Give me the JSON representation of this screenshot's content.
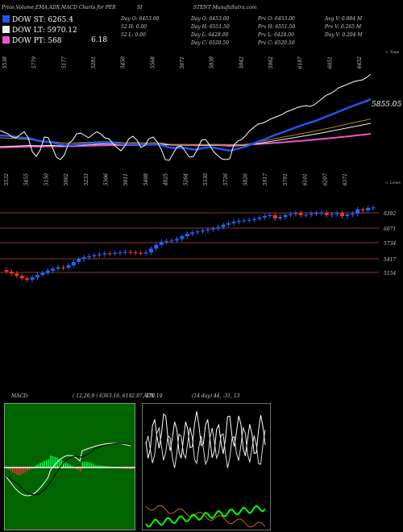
{
  "header": {
    "title_left": "Price,Volume,EMA,ADX,MACD Charts for PER",
    "title_mid": "SI",
    "title_right": "STENT MunafaSutra.com"
  },
  "legend": [
    {
      "label": "DOW ST: 6265.4",
      "color": "#2255ee",
      "extra": ""
    },
    {
      "label": "DOW LT: 5970.12",
      "color": "#f0f0f0",
      "extra": ""
    },
    {
      "label": "DOW PT: 568",
      "color": "#ee55cc",
      "extra": "6.18"
    }
  ],
  "stats": {
    "col1": [
      "Day O: 6453.00",
      "52 H: 0.00",
      "52 L: 0.00"
    ],
    "col2": [
      "Day O: 6453.00",
      "Day H: 6551.50",
      "Day L: 6428.00",
      "Day C: 6520.50"
    ],
    "col3": [
      "Prv O: 6453.00",
      "Prv H: 6551.50",
      "Prv L: 6428.00",
      "Prv C: 6520.50"
    ],
    "col4": [
      "Avg V: 0.084 M",
      "Prv V: 0.265 M",
      "Day V: 0.204 M"
    ]
  },
  "price_panel": {
    "top_label": "< Tops",
    "bottom_label": "< Lows",
    "current_label": "5855.05",
    "tops": [
      "5538",
      "5779",
      "5177",
      "5281",
      "5450",
      "5568",
      "5671",
      "5838",
      "5842",
      "5962",
      "6187",
      "6051",
      "6452"
    ],
    "lows": [
      "5532",
      "5455",
      "5150",
      "5062",
      "5233",
      "5306",
      "5011",
      "5408",
      "4825",
      "5264",
      "5330",
      "5726",
      "5826",
      "5917",
      "5791",
      "6101",
      "6207",
      "6371"
    ],
    "price_series": [
      5560,
      5540,
      5520,
      5480,
      5470,
      5510,
      5545,
      5470,
      5300,
      5240,
      5320,
      5480,
      5470,
      5350,
      5230,
      5200,
      5260,
      5400,
      5440,
      5520,
      5530,
      5500,
      5470,
      5510,
      5545,
      5520,
      5470,
      5460,
      5400,
      5350,
      5310,
      5370,
      5460,
      5490,
      5440,
      5350,
      5380,
      5460,
      5480,
      5420,
      5330,
      5200,
      5190,
      5280,
      5360,
      5370,
      5300,
      5230,
      5240,
      5330,
      5440,
      5450,
      5380,
      5300,
      5250,
      5210,
      5200,
      5210,
      5380,
      5430,
      5450,
      5500,
      5560,
      5600,
      5640,
      5650,
      5670,
      5700,
      5720,
      5740,
      5760,
      5790,
      5810,
      5830,
      5850,
      5860,
      5870,
      5860,
      5880,
      5920,
      5960,
      6000,
      6020,
      6050,
      6090,
      6110,
      6130,
      6150,
      6170,
      6180,
      6190,
      6220,
      6260
    ],
    "ema_short": [
      5500,
      5498,
      5495,
      5490,
      5482,
      5475,
      5470,
      5466,
      5455,
      5440,
      5430,
      5423,
      5420,
      5412,
      5400,
      5388,
      5380,
      5378,
      5380,
      5386,
      5392,
      5396,
      5398,
      5403,
      5410,
      5414,
      5415,
      5414,
      5410,
      5402,
      5392,
      5388,
      5390,
      5393,
      5393,
      5388,
      5385,
      5388,
      5391,
      5389,
      5380,
      5364,
      5350,
      5344,
      5345,
      5347,
      5342,
      5332,
      5325,
      5326,
      5338,
      5350,
      5353,
      5349,
      5340,
      5330,
      5320,
      5312,
      5322,
      5335,
      5348,
      5362,
      5382,
      5402,
      5424,
      5442,
      5460,
      5480,
      5500,
      5518,
      5536,
      5555,
      5573,
      5592,
      5610,
      5628,
      5645,
      5660,
      5676,
      5694,
      5714,
      5734,
      5753,
      5773,
      5795,
      5815,
      5835,
      5855,
      5875,
      5892,
      5909,
      5928,
      5950
    ],
    "ema_long": [
      5360,
      5362,
      5364,
      5366,
      5368,
      5370,
      5373,
      5375,
      5374,
      5372,
      5372,
      5374,
      5376,
      5375,
      5372,
      5370,
      5369,
      5370,
      5373,
      5377,
      5380,
      5383,
      5385,
      5388,
      5391,
      5394,
      5396,
      5397,
      5397,
      5396,
      5394,
      5393,
      5394,
      5395,
      5395,
      5394,
      5393,
      5394,
      5395,
      5395,
      5393,
      5389,
      5385,
      5383,
      5382,
      5382,
      5380,
      5377,
      5374,
      5373,
      5375,
      5378,
      5379,
      5378,
      5376,
      5373,
      5370,
      5367,
      5368,
      5371,
      5375,
      5380,
      5386,
      5393,
      5401,
      5408,
      5416,
      5424,
      5432,
      5440,
      5448,
      5456,
      5465,
      5473,
      5481,
      5490,
      5498,
      5506,
      5515,
      5524,
      5533,
      5543,
      5552,
      5561,
      5571,
      5581,
      5591,
      5601,
      5611,
      5620,
      5630,
      5640,
      5651
    ],
    "ema_pt": [
      5350,
      5352,
      5353,
      5355,
      5357,
      5358,
      5360,
      5361,
      5362,
      5362,
      5362,
      5363,
      5364,
      5365,
      5365,
      5365,
      5365,
      5366,
      5367,
      5368,
      5370,
      5371,
      5372,
      5374,
      5375,
      5376,
      5378,
      5379,
      5380,
      5380,
      5380,
      5380,
      5381,
      5382,
      5383,
      5383,
      5384,
      5384,
      5385,
      5386,
      5386,
      5385,
      5385,
      5384,
      5384,
      5384,
      5384,
      5383,
      5382,
      5382,
      5382,
      5383,
      5384,
      5384,
      5384,
      5383,
      5382,
      5381,
      5381,
      5382,
      5383,
      5385,
      5388,
      5390,
      5393,
      5396,
      5400,
      5403,
      5407,
      5410,
      5414,
      5418,
      5422,
      5426,
      5430,
      5434,
      5438,
      5443,
      5447,
      5452,
      5456,
      5461,
      5466,
      5471,
      5476,
      5481,
      5486,
      5491,
      5497,
      5502,
      5508,
      5514,
      5520
    ],
    "ema_trail": [
      5470,
      5468,
      5466,
      5463,
      5460,
      5456,
      5453,
      5450,
      5444,
      5437,
      5431,
      5428,
      5426,
      5422,
      5416,
      5410,
      5406,
      5404,
      5405,
      5408,
      5411,
      5413,
      5414,
      5416,
      5420,
      5422,
      5423,
      5422,
      5420,
      5416,
      5411,
      5409,
      5410,
      5411,
      5411,
      5409,
      5407,
      5408,
      5410,
      5409,
      5405,
      5397,
      5390,
      5386,
      5386,
      5386,
      5384,
      5379,
      5375,
      5375,
      5380,
      5386,
      5387,
      5385,
      5381,
      5375,
      5370,
      5365,
      5369,
      5375,
      5381,
      5388,
      5398,
      5408,
      5419,
      5428,
      5437,
      5447,
      5457,
      5466,
      5476,
      5486,
      5495,
      5505,
      5515,
      5525,
      5534,
      5543,
      5552,
      5562,
      5573,
      5584,
      5594,
      5605,
      5617,
      5628,
      5639,
      5650,
      5661,
      5671,
      5681,
      5692,
      5704
    ]
  },
  "candle_panel": {
    "levels": [
      "6392",
      "6071",
      "5734",
      "5417",
      "5154"
    ],
    "closes": [
      5220,
      5180,
      5130,
      5080,
      5050,
      5100,
      5150,
      5190,
      5240,
      5280,
      5310,
      5300,
      5350,
      5420,
      5480,
      5520,
      5540,
      5560,
      5580,
      5600,
      5590,
      5610,
      5620,
      5630,
      5620,
      5610,
      5600,
      5620,
      5700,
      5780,
      5840,
      5860,
      5870,
      5900,
      5960,
      6010,
      6040,
      6060,
      6080,
      6100,
      6120,
      6150,
      6200,
      6230,
      6260,
      6280,
      6290,
      6300,
      6320,
      6350,
      6380,
      6400,
      6330,
      6360,
      6400,
      6420,
      6440,
      6400,
      6410,
      6430,
      6440,
      6450,
      6400,
      6420,
      6440,
      6380,
      6410,
      6430,
      6520,
      6500,
      6550,
      6560
    ]
  },
  "macd": {
    "label": "MACD:",
    "values": "( 12,26,9 ) 6363.16, 6192.97, 170.19"
  },
  "adx": {
    "label": "ADX",
    "values": "(14 day) 44, -31, 13"
  }
}
